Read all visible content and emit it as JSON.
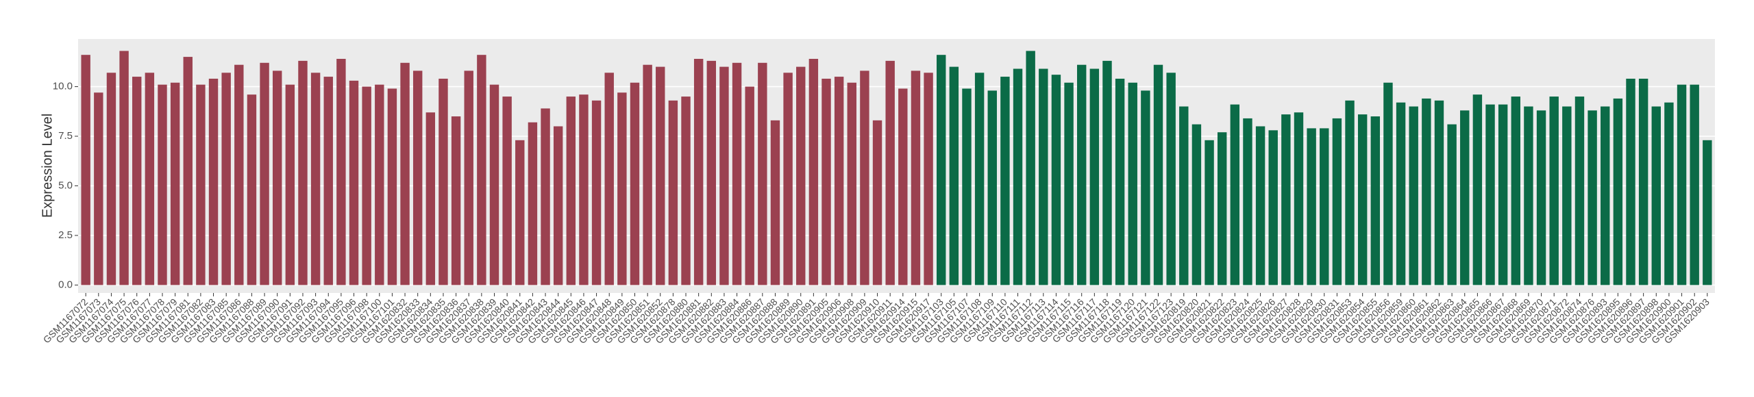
{
  "chart_data": {
    "type": "bar",
    "y_label": "Expression Level",
    "categories": [
      "GSM1167072",
      "GSM1167073",
      "GSM1167074",
      "GSM1167075",
      "GSM1167076",
      "GSM1167077",
      "GSM1167078",
      "GSM1167079",
      "GSM1167081",
      "GSM1167082",
      "GSM1167083",
      "GSM1167085",
      "GSM1167086",
      "GSM1167088",
      "GSM1167089",
      "GSM1167090",
      "GSM1167091",
      "GSM1167092",
      "GSM1167093",
      "GSM1167094",
      "GSM1167095",
      "GSM1167096",
      "GSM1167098",
      "GSM1167100",
      "GSM1167101",
      "GSM1620832",
      "GSM1620833",
      "GSM1620834",
      "GSM1620835",
      "GSM1620836",
      "GSM1620837",
      "GSM1620838",
      "GSM1620839",
      "GSM1620840",
      "GSM1620841",
      "GSM1620842",
      "GSM1620843",
      "GSM1620844",
      "GSM1620845",
      "GSM1620846",
      "GSM1620847",
      "GSM1620848",
      "GSM1620849",
      "GSM1620850",
      "GSM1620851",
      "GSM1620852",
      "GSM1620878",
      "GSM1620880",
      "GSM1620881",
      "GSM1620882",
      "GSM1620883",
      "GSM1620884",
      "GSM1620886",
      "GSM1620887",
      "GSM1620888",
      "GSM1620889",
      "GSM1620890",
      "GSM1620891",
      "GSM1620905",
      "GSM1620906",
      "GSM1620908",
      "GSM1620909",
      "GSM1620910",
      "GSM1620911",
      "GSM1620914",
      "GSM1620915",
      "GSM1620917",
      "GSM1167103",
      "GSM1167105",
      "GSM1167107",
      "GSM1167108",
      "GSM1167109",
      "GSM1167110",
      "GSM1167111",
      "GSM1167112",
      "GSM1167113",
      "GSM1167114",
      "GSM1167115",
      "GSM1167116",
      "GSM1167117",
      "GSM1167118",
      "GSM1167119",
      "GSM1167120",
      "GSM1167121",
      "GSM1167122",
      "GSM1167123",
      "GSM1620819",
      "GSM1620820",
      "GSM1620821",
      "GSM1620822",
      "GSM1620823",
      "GSM1620824",
      "GSM1620825",
      "GSM1620826",
      "GSM1620827",
      "GSM1620828",
      "GSM1620829",
      "GSM1620830",
      "GSM1620831",
      "GSM1620853",
      "GSM1620854",
      "GSM1620855",
      "GSM1620856",
      "GSM1620859",
      "GSM1620860",
      "GSM1620861",
      "GSM1620862",
      "GSM1620863",
      "GSM1620864",
      "GSM1620865",
      "GSM1620866",
      "GSM1620867",
      "GSM1620868",
      "GSM1620869",
      "GSM1620870",
      "GSM1620871",
      "GSM1620872",
      "GSM1620874",
      "GSM1620876",
      "GSM1620893",
      "GSM1620895",
      "GSM1620896",
      "GSM1620897",
      "GSM1620898",
      "GSM1620900",
      "GSM1620901",
      "GSM1620902",
      "GSM1620903"
    ],
    "series": [
      {
        "color": "#9b4150",
        "values": [
          11.6,
          9.7,
          10.7,
          11.8,
          10.5,
          10.7,
          10.1,
          10.2,
          11.5,
          10.1,
          10.4,
          10.7,
          11.1,
          9.6,
          11.2,
          10.8,
          10.1,
          11.3,
          10.7,
          10.5,
          11.4,
          10.3,
          10.0,
          10.1,
          9.9,
          11.2,
          10.8,
          8.7,
          10.4,
          8.5,
          10.8,
          11.6,
          10.1,
          9.5,
          7.3,
          8.2,
          8.9,
          8.0,
          9.5,
          9.6,
          9.3,
          10.7,
          9.7,
          10.2,
          11.1,
          11.0,
          9.3,
          9.5,
          11.4,
          11.3,
          11.0,
          11.2,
          10.0,
          11.2,
          8.3,
          10.7,
          11.0,
          11.4,
          10.4,
          10.5,
          10.2,
          10.8,
          8.3,
          11.3,
          9.9,
          10.8,
          10.7,
          null,
          null,
          null,
          null,
          null,
          null,
          null,
          null,
          null,
          null,
          null,
          null,
          null,
          null,
          null,
          null,
          null,
          null,
          null,
          null,
          null,
          null,
          null,
          null,
          null,
          null,
          null,
          null,
          null,
          null,
          null,
          null,
          null,
          null,
          null,
          null,
          null,
          null,
          null,
          null,
          null,
          null,
          null,
          null,
          null,
          null,
          null,
          null,
          null,
          null,
          null,
          null,
          null,
          null,
          null,
          null,
          null,
          null,
          null,
          null,
          null
        ]
      },
      {
        "color": "#0b6b47",
        "values": [
          null,
          null,
          null,
          null,
          null,
          null,
          null,
          null,
          null,
          null,
          null,
          null,
          null,
          null,
          null,
          null,
          null,
          null,
          null,
          null,
          null,
          null,
          null,
          null,
          null,
          null,
          null,
          null,
          null,
          null,
          null,
          null,
          null,
          null,
          null,
          null,
          null,
          null,
          null,
          null,
          null,
          null,
          null,
          null,
          null,
          null,
          null,
          null,
          null,
          null,
          null,
          null,
          null,
          null,
          null,
          null,
          null,
          null,
          null,
          null,
          null,
          null,
          null,
          null,
          null,
          null,
          null,
          11.6,
          11.0,
          9.9,
          10.7,
          9.8,
          10.5,
          10.9,
          11.8,
          10.9,
          10.6,
          10.2,
          11.1,
          10.9,
          11.3,
          10.4,
          10.2,
          9.8,
          11.1,
          10.7,
          9.0,
          8.1,
          7.3,
          7.7,
          9.1,
          8.4,
          8.0,
          7.8,
          8.6,
          8.7,
          7.9,
          7.9,
          8.4,
          9.3,
          8.6,
          8.5,
          10.2,
          9.2,
          9.0,
          9.4,
          9.3,
          8.1,
          8.8,
          9.6,
          9.1,
          9.1,
          9.5,
          9.0,
          8.8,
          9.5,
          9.0,
          9.5,
          8.8,
          9.0,
          9.4,
          10.4,
          10.4,
          9.0,
          9.2,
          10.1,
          10.1,
          7.3
        ]
      }
    ],
    "ylim": [
      -0.4,
      12.4
    ],
    "yticks": [
      {
        "value": 0,
        "label": "0.0"
      },
      2.5,
      {
        "value": 5,
        "label": "5.0"
      },
      7.5,
      {
        "value": 10,
        "label": "10.0"
      }
    ],
    "grid": true
  }
}
